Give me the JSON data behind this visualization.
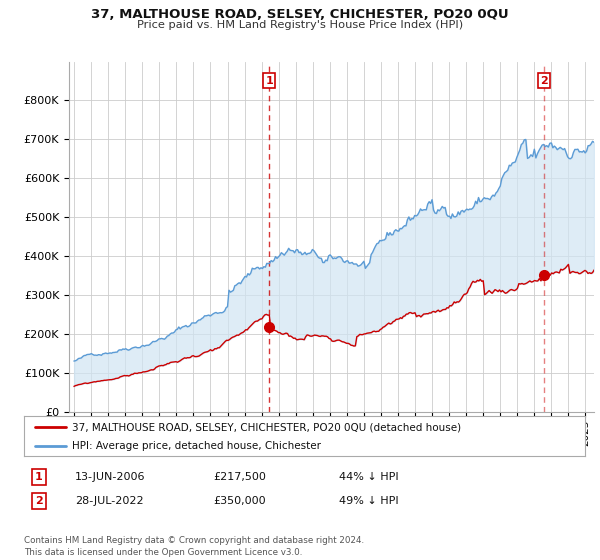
{
  "title": "37, MALTHOUSE ROAD, SELSEY, CHICHESTER, PO20 0QU",
  "subtitle": "Price paid vs. HM Land Registry's House Price Index (HPI)",
  "ylim": [
    0,
    900000
  ],
  "yticks": [
    0,
    100000,
    200000,
    300000,
    400000,
    500000,
    600000,
    700000,
    800000
  ],
  "ytick_labels": [
    "£0",
    "£100K",
    "£200K",
    "£300K",
    "£400K",
    "£500K",
    "£600K",
    "£700K",
    "£800K"
  ],
  "hpi_color": "#5b9bd5",
  "hpi_fill_color": "#d0e4f3",
  "sale_color": "#cc0000",
  "vline_color": "#cc0000",
  "marker1_date": 2006.45,
  "marker1_price": 217500,
  "marker2_date": 2022.57,
  "marker2_price": 350000,
  "legend_sale": "37, MALTHOUSE ROAD, SELSEY, CHICHESTER, PO20 0QU (detached house)",
  "legend_hpi": "HPI: Average price, detached house, Chichester",
  "table_row1_date": "13-JUN-2006",
  "table_row1_price": "£217,500",
  "table_row1_pct": "44% ↓ HPI",
  "table_row2_date": "28-JUL-2022",
  "table_row2_price": "£350,000",
  "table_row2_pct": "49% ↓ HPI",
  "footer": "Contains HM Land Registry data © Crown copyright and database right 2024.\nThis data is licensed under the Open Government Licence v3.0.",
  "background_color": "#ffffff",
  "grid_color": "#cccccc",
  "xlim_start": 1994.7,
  "xlim_end": 2025.5
}
